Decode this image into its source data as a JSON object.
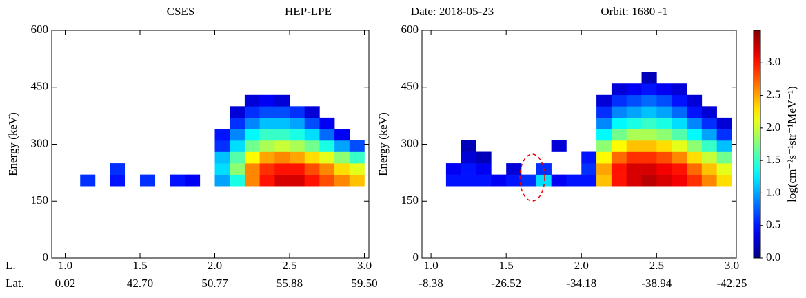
{
  "header_texts": [
    "CSES",
    "HEP-LPE",
    "Date: 2018-05-23",
    "Orbit: 1680 -1"
  ],
  "chart_data": [
    {
      "type": "heatmap",
      "y_label": "Energy (keV)",
      "xlim": [
        0.91,
        3.03
      ],
      "ylim": [
        0,
        600
      ],
      "xticks": [
        {
          "value": 1.0,
          "label": "1.0"
        },
        {
          "value": 1.5,
          "label": "1.5"
        },
        {
          "value": 2.0,
          "label": "2.0"
        },
        {
          "value": 2.5,
          "label": "2.5"
        },
        {
          "value": 3.0,
          "label": "3.0"
        }
      ],
      "secondary_labels": [
        "0.02",
        "42.70",
        "50.77",
        "55.88",
        "59.50"
      ],
      "x_row_labels": [
        "L.",
        "Lat."
      ],
      "yticks": [
        0,
        150,
        300,
        450,
        600
      ],
      "x": [
        1.0,
        1.1,
        1.2,
        1.3,
        1.4,
        1.5,
        1.6,
        1.7,
        1.8,
        1.9,
        2.0,
        2.1,
        2.2,
        2.3,
        2.4,
        2.5,
        2.6,
        2.7,
        2.8,
        2.9,
        3.0
      ],
      "y": [
        190,
        220,
        250,
        280,
        310,
        340,
        370,
        400,
        430,
        460,
        490
      ],
      "values": [
        [
          null,
          0.6,
          null,
          0.5,
          null,
          0.6,
          null,
          0.5,
          0.4,
          null,
          1.0,
          1.4,
          2.6,
          3.0,
          3.2,
          3.2,
          3.0,
          2.8,
          2.6,
          2.4
        ],
        [
          null,
          null,
          null,
          0.6,
          null,
          null,
          null,
          null,
          null,
          null,
          1.2,
          1.8,
          2.6,
          2.9,
          3.0,
          3.0,
          2.8,
          2.6,
          2.3,
          2.1
        ],
        [
          null,
          null,
          null,
          null,
          null,
          null,
          null,
          null,
          null,
          null,
          1.1,
          1.6,
          2.2,
          2.5,
          2.6,
          2.5,
          2.3,
          2.1,
          1.8,
          1.5
        ],
        [
          null,
          null,
          null,
          null,
          null,
          null,
          null,
          null,
          null,
          null,
          0.6,
          1.2,
          1.7,
          1.9,
          2.0,
          1.9,
          1.7,
          1.4,
          1.0,
          0.7
        ],
        [
          null,
          null,
          null,
          null,
          null,
          null,
          null,
          null,
          null,
          null,
          0.5,
          0.9,
          1.3,
          1.5,
          1.5,
          1.4,
          1.2,
          0.8,
          0.4,
          null
        ],
        [
          null,
          null,
          null,
          null,
          null,
          null,
          null,
          null,
          null,
          null,
          null,
          0.6,
          0.9,
          1.1,
          1.1,
          1.0,
          0.7,
          0.4,
          null,
          null
        ],
        [
          null,
          null,
          null,
          null,
          null,
          null,
          null,
          null,
          null,
          null,
          null,
          0.3,
          0.6,
          0.7,
          0.7,
          0.6,
          0.3,
          null,
          null,
          null
        ],
        [
          null,
          null,
          null,
          null,
          null,
          null,
          null,
          null,
          null,
          null,
          null,
          null,
          0.3,
          0.4,
          0.3,
          null,
          null,
          null,
          null,
          null
        ],
        [
          null,
          null,
          null,
          null,
          null,
          null,
          null,
          null,
          null,
          null,
          null,
          null,
          null,
          null,
          null,
          null,
          null,
          null,
          null,
          null
        ],
        [
          null,
          null,
          null,
          null,
          null,
          null,
          null,
          null,
          null,
          null,
          null,
          null,
          null,
          null,
          null,
          null,
          null,
          null,
          null,
          null
        ]
      ]
    },
    {
      "type": "heatmap",
      "y_label": "Energy (keV)",
      "xlim": [
        0.94,
        3.03
      ],
      "ylim": [
        0,
        600
      ],
      "xticks": [
        {
          "value": 1.0,
          "label": "1.0"
        },
        {
          "value": 1.5,
          "label": "1.5"
        },
        {
          "value": 2.0,
          "label": "2.0"
        },
        {
          "value": 2.5,
          "label": "2.5"
        },
        {
          "value": 3.0,
          "label": "3.0"
        }
      ],
      "secondary_labels": [
        "-8.38",
        "-26.52",
        "-34.18",
        "-38.94",
        "-42.25"
      ],
      "yticks": [
        0,
        150,
        300,
        450,
        600
      ],
      "x": [
        1.0,
        1.1,
        1.2,
        1.3,
        1.4,
        1.5,
        1.6,
        1.7,
        1.8,
        1.9,
        2.0,
        2.1,
        2.2,
        2.3,
        2.4,
        2.5,
        2.6,
        2.7,
        2.8,
        2.9,
        3.0
      ],
      "y": [
        190,
        220,
        250,
        280,
        310,
        340,
        370,
        400,
        430,
        460,
        490
      ],
      "values": [
        [
          null,
          0.5,
          0.5,
          0.5,
          0.4,
          0.5,
          0.6,
          1.2,
          0.4,
          0.5,
          0.5,
          2.4,
          3.0,
          3.2,
          3.3,
          3.2,
          3.1,
          2.9,
          2.6,
          2.3
        ],
        [
          null,
          0.4,
          0.5,
          0.4,
          null,
          0.3,
          null,
          0.6,
          null,
          null,
          0.6,
          2.5,
          3.0,
          3.2,
          3.2,
          3.1,
          3.0,
          2.7,
          2.4,
          2.1
        ],
        [
          null,
          null,
          0.3,
          0.2,
          null,
          null,
          null,
          null,
          null,
          null,
          0.5,
          2.2,
          2.7,
          2.9,
          2.9,
          2.8,
          2.6,
          2.3,
          2.0,
          1.7
        ],
        [
          null,
          null,
          0.2,
          null,
          null,
          null,
          null,
          null,
          0.3,
          null,
          null,
          1.8,
          2.2,
          2.4,
          2.4,
          2.3,
          2.1,
          1.8,
          1.5,
          1.1
        ],
        [
          null,
          null,
          null,
          null,
          null,
          null,
          null,
          null,
          null,
          null,
          null,
          1.3,
          1.7,
          1.9,
          1.9,
          1.8,
          1.6,
          1.3,
          1.0,
          0.6
        ],
        [
          null,
          null,
          null,
          null,
          null,
          null,
          null,
          null,
          null,
          null,
          null,
          0.9,
          1.3,
          1.4,
          1.5,
          1.4,
          1.2,
          0.9,
          0.6,
          0.3
        ],
        [
          null,
          null,
          null,
          null,
          null,
          null,
          null,
          null,
          null,
          null,
          null,
          0.6,
          0.9,
          1.0,
          1.1,
          1.0,
          0.8,
          0.5,
          0.3,
          null
        ],
        [
          null,
          null,
          null,
          null,
          null,
          null,
          null,
          null,
          null,
          null,
          null,
          0.3,
          0.6,
          0.7,
          0.8,
          0.7,
          0.5,
          0.3,
          null,
          null
        ],
        [
          null,
          null,
          null,
          null,
          null,
          null,
          null,
          null,
          null,
          null,
          null,
          null,
          0.3,
          0.4,
          0.5,
          0.4,
          0.3,
          null,
          null,
          null
        ],
        [
          null,
          null,
          null,
          null,
          null,
          null,
          null,
          null,
          null,
          null,
          null,
          null,
          null,
          null,
          0.2,
          null,
          null,
          null,
          null,
          null
        ]
      ],
      "colorbar": {
        "label": "log(cm⁻²s⁻¹str⁻¹MeV⁻¹)",
        "lim": [
          0,
          3.5
        ],
        "ticks": [
          {
            "value": 0,
            "label": "0.0"
          },
          {
            "value": 0.5,
            "label": "0.5"
          },
          {
            "value": 1,
            "label": "1.0"
          },
          {
            "value": 1.5,
            "label": "1.5"
          },
          {
            "value": 2,
            "label": "2.0"
          },
          {
            "value": 2.5,
            "label": "2.5"
          },
          {
            "value": 3,
            "label": "3.0"
          }
        ]
      }
    }
  ]
}
